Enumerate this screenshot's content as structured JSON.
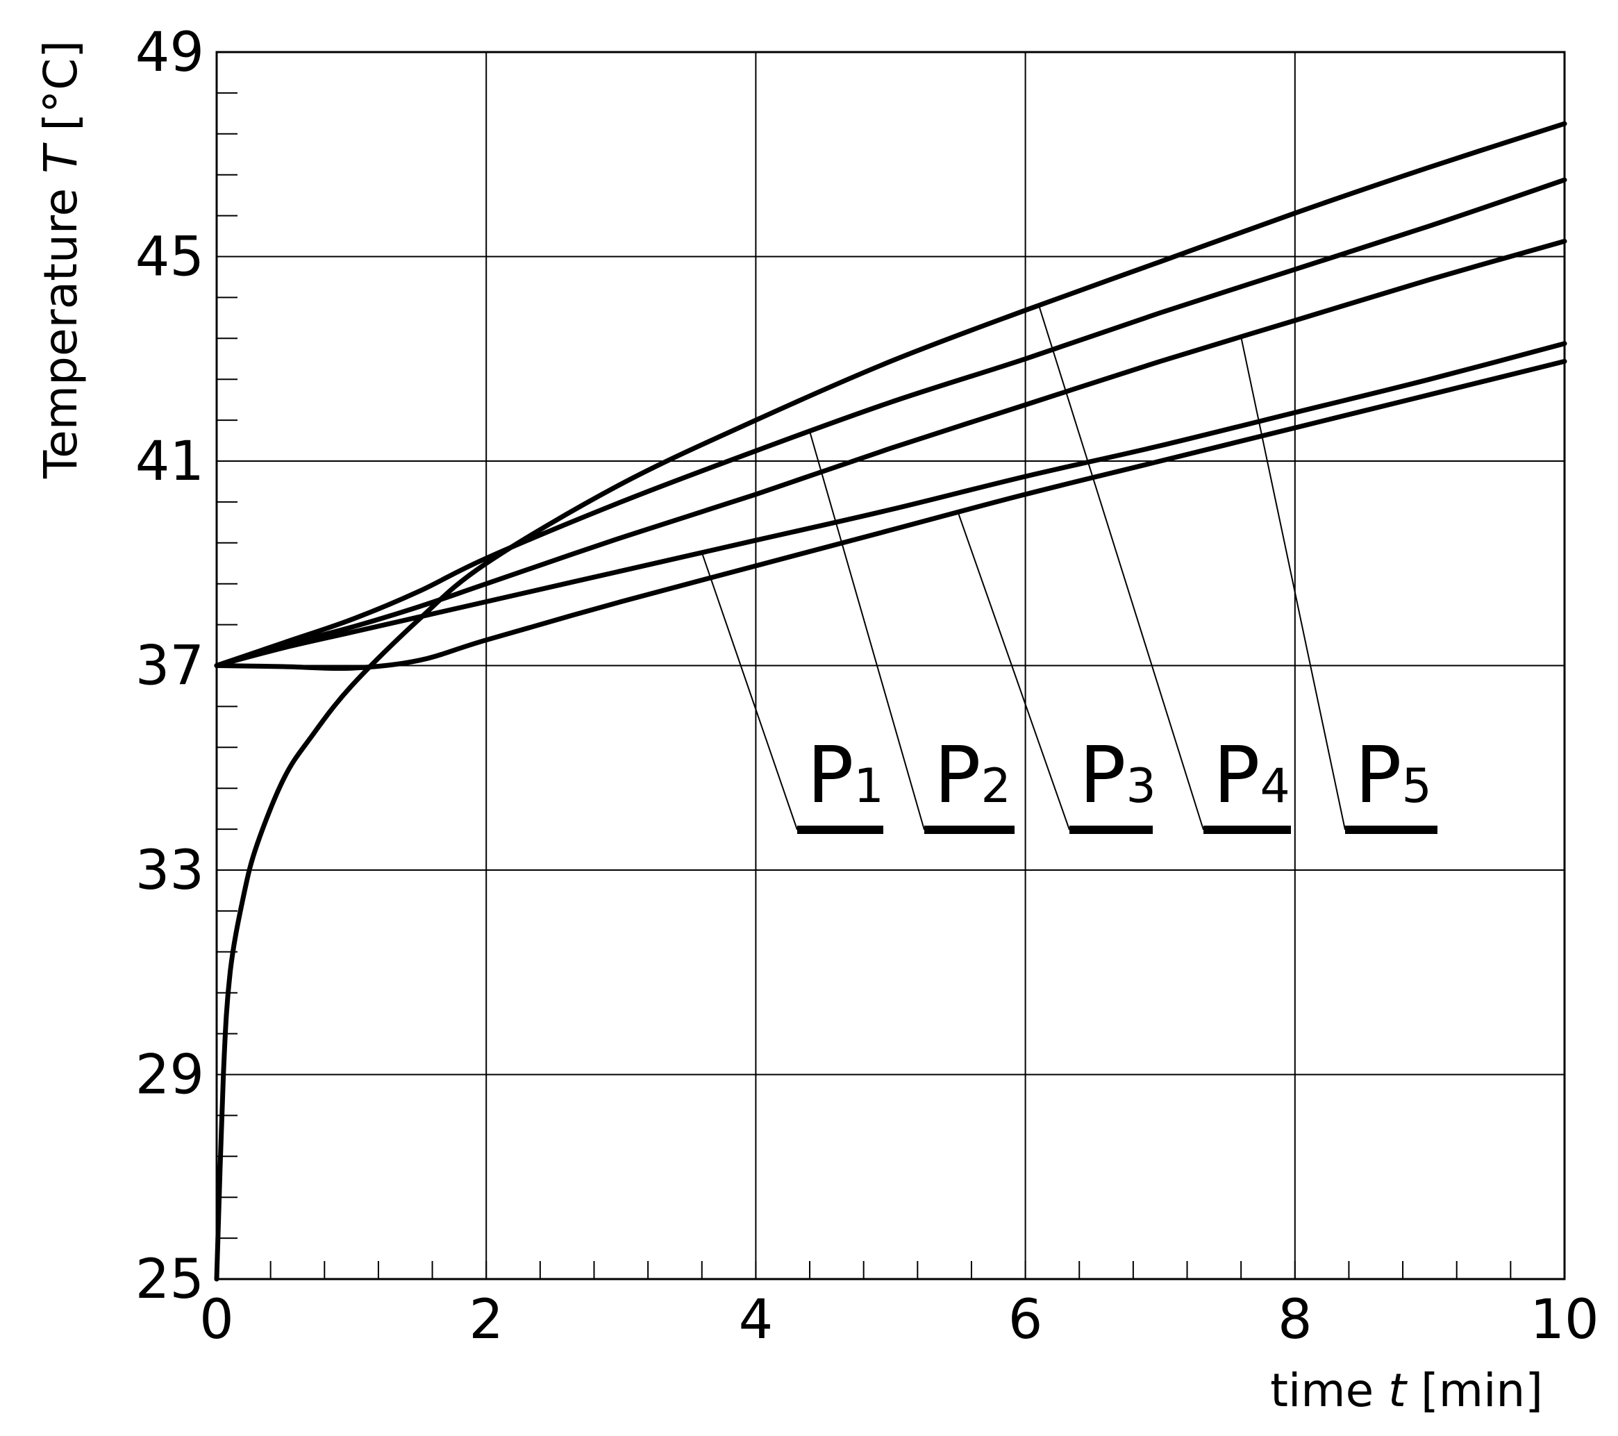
{
  "chart_data": {
    "type": "line",
    "title": "",
    "xlabel": {
      "prefix": "time ",
      "symbol": "t",
      "suffix": " [min]"
    },
    "ylabel": {
      "prefix": "Temperature ",
      "symbol": "T",
      "suffix": " [°C]"
    },
    "xlim": [
      0,
      10
    ],
    "ylim": [
      25,
      49
    ],
    "x_ticks": [
      "0",
      "2",
      "4",
      "6",
      "8",
      "10"
    ],
    "y_ticks": [
      "25",
      "29",
      "33",
      "37",
      "41",
      "45",
      "49"
    ],
    "grid": true,
    "colors": {
      "line": "#000000",
      "grid": "#000000",
      "background": "#ffffff"
    },
    "series": [
      {
        "name": "P",
        "subscript": "1",
        "label_x": 3.6,
        "points": [
          [
            0,
            37
          ],
          [
            0.5,
            37.35
          ],
          [
            1,
            37.65
          ],
          [
            1.5,
            37.95
          ],
          [
            2,
            38.25
          ],
          [
            3,
            38.85
          ],
          [
            4,
            39.45
          ],
          [
            5,
            40.05
          ],
          [
            6,
            40.7
          ],
          [
            7,
            41.3
          ],
          [
            8,
            41.95
          ],
          [
            9,
            42.6
          ],
          [
            10,
            43.3
          ]
        ]
      },
      {
        "name": "P",
        "subscript": "2",
        "label_x": 4.4,
        "points": [
          [
            0,
            37
          ],
          [
            0.5,
            37.45
          ],
          [
            1,
            37.9
          ],
          [
            1.5,
            38.45
          ],
          [
            2,
            39.1
          ],
          [
            3,
            40.2
          ],
          [
            4,
            41.2
          ],
          [
            5,
            42.15
          ],
          [
            6,
            43.0
          ],
          [
            7,
            43.9
          ],
          [
            8,
            44.75
          ],
          [
            9,
            45.6
          ],
          [
            10,
            46.5
          ]
        ]
      },
      {
        "name": "P",
        "subscript": "3",
        "label_x": 5.5,
        "points": [
          [
            0,
            37
          ],
          [
            0.5,
            36.98
          ],
          [
            1,
            36.95
          ],
          [
            1.5,
            37.1
          ],
          [
            2,
            37.5
          ],
          [
            3,
            38.25
          ],
          [
            4,
            38.95
          ],
          [
            5,
            39.65
          ],
          [
            6,
            40.35
          ],
          [
            7,
            41.0
          ],
          [
            8,
            41.65
          ],
          [
            9,
            42.3
          ],
          [
            10,
            42.95
          ]
        ]
      },
      {
        "name": "P",
        "subscript": "4",
        "label_x": 6.1,
        "points": [
          [
            0,
            25
          ],
          [
            0.05,
            29
          ],
          [
            0.1,
            31
          ],
          [
            0.2,
            32.5
          ],
          [
            0.3,
            33.5
          ],
          [
            0.5,
            34.8
          ],
          [
            0.7,
            35.6
          ],
          [
            1,
            36.6
          ],
          [
            1.5,
            37.9
          ],
          [
            2,
            39.0
          ],
          [
            3,
            40.55
          ],
          [
            4,
            41.8
          ],
          [
            5,
            42.95
          ],
          [
            6,
            43.95
          ],
          [
            7,
            44.9
          ],
          [
            8,
            45.85
          ],
          [
            9,
            46.75
          ],
          [
            10,
            47.6
          ]
        ]
      },
      {
        "name": "P",
        "subscript": "5",
        "label_x": 7.6,
        "points": [
          [
            0,
            37
          ],
          [
            0.5,
            37.4
          ],
          [
            1,
            37.75
          ],
          [
            1.5,
            38.15
          ],
          [
            2,
            38.6
          ],
          [
            3,
            39.5
          ],
          [
            4,
            40.35
          ],
          [
            5,
            41.25
          ],
          [
            6,
            42.1
          ],
          [
            7,
            42.95
          ],
          [
            8,
            43.75
          ],
          [
            9,
            44.55
          ],
          [
            10,
            45.3
          ]
        ]
      }
    ]
  }
}
